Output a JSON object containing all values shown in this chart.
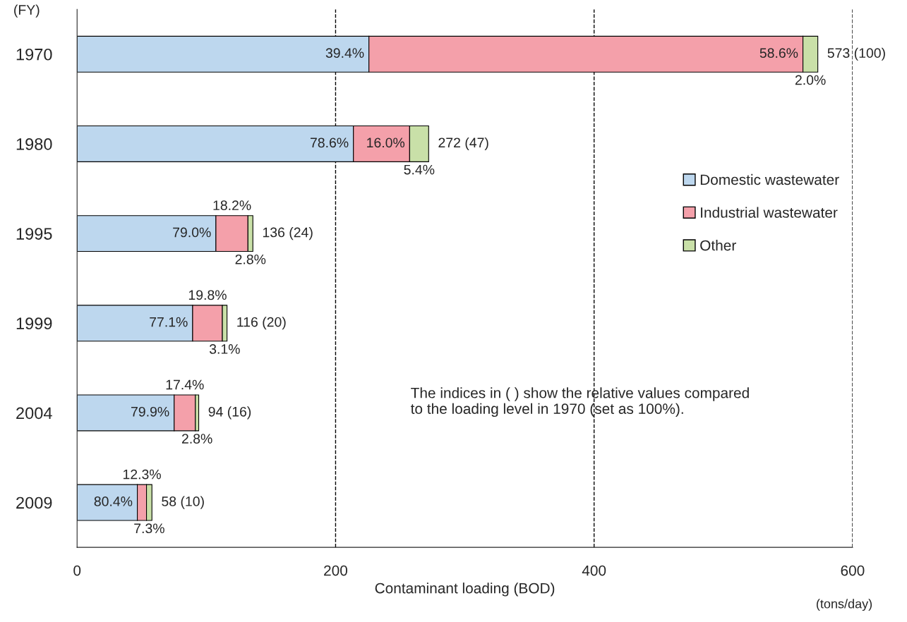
{
  "chart_data": {
    "type": "bar",
    "orientation": "horizontal",
    "stacked": true,
    "categories": [
      "1970",
      "1980",
      "1995",
      "1999",
      "2004",
      "2009"
    ],
    "series": [
      {
        "name": "Domestic wastewater",
        "color": "#bdd7ee",
        "values": [
          225.8,
          213.8,
          107.4,
          89.4,
          75.1,
          46.6
        ]
      },
      {
        "name": "Industrial wastewater",
        "color": "#f4a0aa",
        "values": [
          335.8,
          43.5,
          24.8,
          23.0,
          16.4,
          7.1
        ]
      },
      {
        "name": "Other",
        "color": "#c9e0a8",
        "values": [
          11.5,
          14.7,
          3.8,
          3.6,
          2.6,
          4.2
        ]
      }
    ],
    "totals": [
      "573 (100)",
      "272 (47)",
      "136 (24)",
      "116 (20)",
      "94 (16)",
      "58 (10)"
    ],
    "xlim": [
      0,
      600
    ],
    "xticks": [
      0,
      200,
      400,
      600
    ],
    "xlabel": "Contaminant loading (BOD)",
    "ylabel": "(FY)",
    "annotations": [
      "(tons/day)",
      "The indices in ( ) show the relative values compared\nto the loading level in 1970 (set as 100%).",
      {
        "text": "39.4%",
        "x": 225.8,
        "y": "1970"
      },
      {
        "text": "58.6%",
        "x": 561.6,
        "y": "1970"
      },
      {
        "text": "2.0%",
        "x": 573.1,
        "y": "1970"
      },
      {
        "text": "78.6%",
        "x": 213.8,
        "y": "1980"
      },
      {
        "text": "16.0%",
        "x": 257.3,
        "y": "1980"
      },
      {
        "text": "5.4%",
        "x": 272.0,
        "y": "1980"
      },
      {
        "text": "79.0%",
        "x": 107.4,
        "y": "1995"
      },
      {
        "text": "18.2%",
        "x": 132.2,
        "y": "1995"
      },
      {
        "text": "2.8%",
        "x": 136.0,
        "y": "1995"
      },
      {
        "text": "77.1%",
        "x": 89.4,
        "y": "1999"
      },
      {
        "text": "19.8%",
        "x": 112.4,
        "y": "1999"
      },
      {
        "text": "3.1%",
        "x": 116.0,
        "y": "1999"
      },
      {
        "text": "79.9%",
        "x": 75.1,
        "y": "2004"
      },
      {
        "text": "17.4%",
        "x": 91.5,
        "y": "2004"
      },
      {
        "text": "2.8%",
        "x": 94.1,
        "y": "2004"
      },
      {
        "text": "80.4%",
        "x": 46.6,
        "y": "2009"
      },
      {
        "text": "12.3%",
        "x": 53.7,
        "y": "2009"
      },
      {
        "text": "7.3%",
        "x": 57.9,
        "y": "2009"
      }
    ],
    "grid": "x",
    "line_style": "dashed",
    "legend": "right"
  }
}
